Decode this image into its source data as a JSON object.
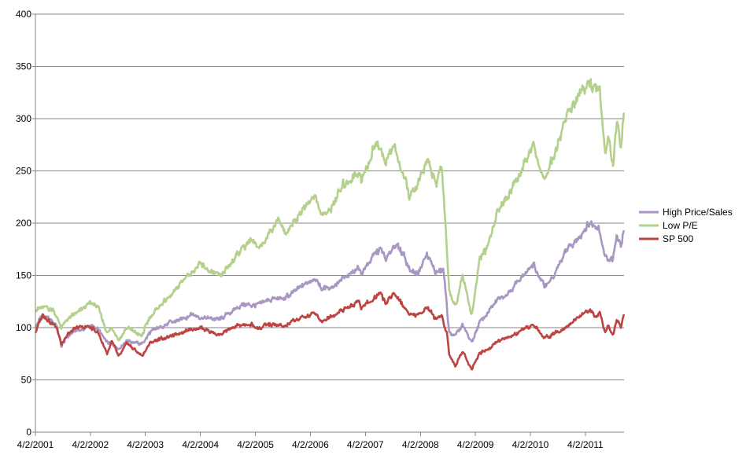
{
  "chart_data": {
    "type": "line",
    "title": "",
    "xlabel": "",
    "ylabel": "",
    "ylim": [
      0,
      400
    ],
    "xlim": [
      "2001-04-02",
      "2011-12-15"
    ],
    "yticks": [
      0,
      50,
      100,
      150,
      200,
      250,
      300,
      350,
      400
    ],
    "xtick_labels": [
      "4/2/2001",
      "4/2/2002",
      "4/2/2003",
      "4/2/2004",
      "4/2/2005",
      "4/2/2006",
      "4/2/2007",
      "4/2/2008",
      "4/2/2009",
      "4/2/2010",
      "4/2/2011"
    ],
    "grid": "horizontal",
    "legend_position": "right",
    "series": [
      {
        "name": "High Price/Sales",
        "color": "#a896c3",
        "points": [
          [
            "2001-04-02",
            100
          ],
          [
            "2001-05-15",
            112
          ],
          [
            "2001-07-01",
            108
          ],
          [
            "2001-08-20",
            103
          ],
          [
            "2001-09-21",
            82
          ],
          [
            "2001-10-25",
            90
          ],
          [
            "2001-12-15",
            97
          ],
          [
            "2002-02-01",
            98
          ],
          [
            "2002-04-01",
            102
          ],
          [
            "2002-05-20",
            99
          ],
          [
            "2002-07-20",
            86
          ],
          [
            "2002-08-25",
            84
          ],
          [
            "2002-10-09",
            80
          ],
          [
            "2002-12-01",
            88
          ],
          [
            "2003-03-10",
            84
          ],
          [
            "2003-05-01",
            95
          ],
          [
            "2003-07-01",
            100
          ],
          [
            "2003-09-01",
            104
          ],
          [
            "2003-12-01",
            108
          ],
          [
            "2004-02-01",
            113
          ],
          [
            "2004-05-01",
            109
          ],
          [
            "2004-08-10",
            108
          ],
          [
            "2004-11-01",
            116
          ],
          [
            "2005-01-01",
            122
          ],
          [
            "2005-04-15",
            121
          ],
          [
            "2005-07-01",
            127
          ],
          [
            "2005-10-15",
            128
          ],
          [
            "2005-12-31",
            136
          ],
          [
            "2006-05-01",
            148
          ],
          [
            "2006-06-15",
            137
          ],
          [
            "2006-09-01",
            140
          ],
          [
            "2006-12-15",
            150
          ],
          [
            "2007-02-20",
            158
          ],
          [
            "2007-03-05",
            152
          ],
          [
            "2007-06-01",
            170
          ],
          [
            "2007-07-15",
            176
          ],
          [
            "2007-08-15",
            164
          ],
          [
            "2007-10-15",
            180
          ],
          [
            "2007-12-15",
            170
          ],
          [
            "2008-01-22",
            155
          ],
          [
            "2008-03-15",
            152
          ],
          [
            "2008-05-15",
            170
          ],
          [
            "2008-07-15",
            152
          ],
          [
            "2008-09-01",
            155
          ],
          [
            "2008-09-25",
            120
          ],
          [
            "2008-10-10",
            95
          ],
          [
            "2008-11-20",
            92
          ],
          [
            "2009-01-06",
            102
          ],
          [
            "2009-03-09",
            86
          ],
          [
            "2009-05-01",
            105
          ],
          [
            "2009-07-01",
            115
          ],
          [
            "2009-09-01",
            128
          ],
          [
            "2009-11-01",
            133
          ],
          [
            "2010-01-15",
            145
          ],
          [
            "2010-04-20",
            160
          ],
          [
            "2010-07-02",
            140
          ],
          [
            "2010-09-01",
            148
          ],
          [
            "2010-12-01",
            175
          ],
          [
            "2011-02-15",
            185
          ],
          [
            "2011-04-20",
            200
          ],
          [
            "2011-07-01",
            197
          ],
          [
            "2011-08-10",
            168
          ],
          [
            "2011-10-03",
            165
          ],
          [
            "2011-10-28",
            188
          ],
          [
            "2011-11-25",
            178
          ],
          [
            "2011-12-15",
            193
          ]
        ]
      },
      {
        "name": "Low P/E",
        "color": "#b3d08c",
        "points": [
          [
            "2001-04-02",
            118
          ],
          [
            "2001-06-01",
            119
          ],
          [
            "2001-08-01",
            117
          ],
          [
            "2001-09-21",
            100
          ],
          [
            "2001-11-01",
            108
          ],
          [
            "2002-01-15",
            115
          ],
          [
            "2002-04-01",
            124
          ],
          [
            "2002-05-20",
            120
          ],
          [
            "2002-07-23",
            95
          ],
          [
            "2002-08-25",
            100
          ],
          [
            "2002-10-09",
            88
          ],
          [
            "2002-12-01",
            100
          ],
          [
            "2003-03-10",
            92
          ],
          [
            "2003-05-01",
            110
          ],
          [
            "2003-07-01",
            120
          ],
          [
            "2003-10-01",
            132
          ],
          [
            "2004-01-01",
            150
          ],
          [
            "2004-04-01",
            160
          ],
          [
            "2004-08-10",
            148
          ],
          [
            "2004-12-01",
            170
          ],
          [
            "2005-03-01",
            185
          ],
          [
            "2005-04-20",
            175
          ],
          [
            "2005-07-01",
            190
          ],
          [
            "2005-09-01",
            205
          ],
          [
            "2005-10-15",
            190
          ],
          [
            "2006-01-01",
            205
          ],
          [
            "2006-05-01",
            228
          ],
          [
            "2006-06-15",
            208
          ],
          [
            "2006-08-01",
            210
          ],
          [
            "2006-11-01",
            235
          ],
          [
            "2007-02-20",
            250
          ],
          [
            "2007-03-05",
            240
          ],
          [
            "2007-05-15",
            265
          ],
          [
            "2007-06-15",
            280
          ],
          [
            "2007-08-15",
            258
          ],
          [
            "2007-10-10",
            275
          ],
          [
            "2007-11-20",
            255
          ],
          [
            "2008-01-22",
            225
          ],
          [
            "2008-03-15",
            235
          ],
          [
            "2008-05-15",
            262
          ],
          [
            "2008-07-15",
            235
          ],
          [
            "2008-08-20",
            258
          ],
          [
            "2008-09-15",
            200
          ],
          [
            "2008-10-10",
            135
          ],
          [
            "2008-11-20",
            120
          ],
          [
            "2009-01-06",
            150
          ],
          [
            "2009-03-09",
            112
          ],
          [
            "2009-05-01",
            165
          ],
          [
            "2009-07-01",
            180
          ],
          [
            "2009-09-01",
            215
          ],
          [
            "2009-11-01",
            225
          ],
          [
            "2010-01-15",
            245
          ],
          [
            "2010-04-20",
            275
          ],
          [
            "2010-07-02",
            240
          ],
          [
            "2010-09-01",
            262
          ],
          [
            "2010-12-01",
            305
          ],
          [
            "2011-02-15",
            318
          ],
          [
            "2011-04-20",
            338
          ],
          [
            "2011-06-15",
            325
          ],
          [
            "2011-07-05",
            330
          ],
          [
            "2011-08-10",
            265
          ],
          [
            "2011-09-01",
            285
          ],
          [
            "2011-10-03",
            250
          ],
          [
            "2011-10-28",
            300
          ],
          [
            "2011-11-25",
            272
          ],
          [
            "2011-12-15",
            312
          ]
        ]
      },
      {
        "name": "SP 500",
        "color": "#bc4441",
        "points": [
          [
            "2001-04-02",
            96
          ],
          [
            "2001-05-21",
            113
          ],
          [
            "2001-07-01",
            107
          ],
          [
            "2001-08-20",
            100
          ],
          [
            "2001-09-21",
            85
          ],
          [
            "2001-11-01",
            93
          ],
          [
            "2002-01-04",
            100
          ],
          [
            "2002-03-19",
            101
          ],
          [
            "2002-05-20",
            96
          ],
          [
            "2002-07-23",
            75
          ],
          [
            "2002-08-22",
            87
          ],
          [
            "2002-10-09",
            72
          ],
          [
            "2002-12-01",
            85
          ],
          [
            "2003-03-11",
            73
          ],
          [
            "2003-05-01",
            85
          ],
          [
            "2003-07-01",
            89
          ],
          [
            "2003-10-01",
            92
          ],
          [
            "2004-01-01",
            98
          ],
          [
            "2004-04-01",
            100
          ],
          [
            "2004-08-12",
            93
          ],
          [
            "2004-12-01",
            102
          ],
          [
            "2005-03-07",
            103
          ],
          [
            "2005-04-20",
            99
          ],
          [
            "2005-07-01",
            103
          ],
          [
            "2005-10-15",
            101
          ],
          [
            "2006-01-01",
            108
          ],
          [
            "2006-05-08",
            114
          ],
          [
            "2006-06-13",
            106
          ],
          [
            "2006-09-01",
            112
          ],
          [
            "2006-12-15",
            120
          ],
          [
            "2007-02-20",
            125
          ],
          [
            "2007-03-05",
            118
          ],
          [
            "2007-07-15",
            134
          ],
          [
            "2007-08-15",
            123
          ],
          [
            "2007-10-09",
            133
          ],
          [
            "2007-11-20",
            125
          ],
          [
            "2008-01-22",
            113
          ],
          [
            "2008-03-15",
            112
          ],
          [
            "2008-05-15",
            120
          ],
          [
            "2008-07-15",
            108
          ],
          [
            "2008-08-20",
            112
          ],
          [
            "2008-09-25",
            95
          ],
          [
            "2008-10-10",
            75
          ],
          [
            "2008-11-20",
            63
          ],
          [
            "2009-01-06",
            78
          ],
          [
            "2009-03-09",
            60
          ],
          [
            "2009-05-01",
            76
          ],
          [
            "2009-07-01",
            80
          ],
          [
            "2009-09-01",
            87
          ],
          [
            "2009-11-01",
            90
          ],
          [
            "2010-01-15",
            95
          ],
          [
            "2010-04-23",
            103
          ],
          [
            "2010-07-02",
            90
          ],
          [
            "2010-09-01",
            94
          ],
          [
            "2010-12-01",
            102
          ],
          [
            "2011-02-15",
            110
          ],
          [
            "2011-04-29",
            117
          ],
          [
            "2011-06-15",
            111
          ],
          [
            "2011-07-05",
            116
          ],
          [
            "2011-08-10",
            96
          ],
          [
            "2011-09-01",
            102
          ],
          [
            "2011-10-03",
            93
          ],
          [
            "2011-10-28",
            108
          ],
          [
            "2011-11-25",
            100
          ],
          [
            "2011-12-15",
            113
          ]
        ]
      }
    ]
  }
}
